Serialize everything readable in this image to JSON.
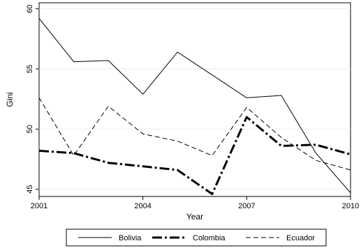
{
  "chart_data": {
    "type": "line",
    "title": "",
    "xlabel": "Year",
    "ylabel": "Gini",
    "x": [
      2001,
      2002,
      2003,
      2004,
      2005,
      2006,
      2007,
      2008,
      2009,
      2010
    ],
    "xticks": [
      2001,
      2004,
      2007,
      2010
    ],
    "yticks": [
      45,
      50,
      55,
      60
    ],
    "xlim": [
      2001,
      2010
    ],
    "ylim": [
      44.4,
      60.5
    ],
    "grid": "horizontal",
    "legend_position": "bottom",
    "series": [
      {
        "name": "Bolivia",
        "values": [
          59.2,
          55.6,
          55.7,
          52.9,
          56.4,
          54.5,
          52.6,
          52.8,
          48.0,
          44.7
        ],
        "style": "solid",
        "color": "#000000"
      },
      {
        "name": "Colombia",
        "values": [
          48.2,
          48.0,
          47.2,
          46.9,
          46.6,
          44.6,
          51.0,
          48.6,
          48.7,
          47.9
        ],
        "style": "longdash-dot",
        "color": "#000000"
      },
      {
        "name": "Ecuador",
        "values": [
          52.6,
          47.8,
          51.9,
          49.6,
          49.0,
          47.8,
          51.8,
          49.3,
          47.4,
          46.6
        ],
        "style": "dash",
        "color": "#000000"
      }
    ]
  }
}
